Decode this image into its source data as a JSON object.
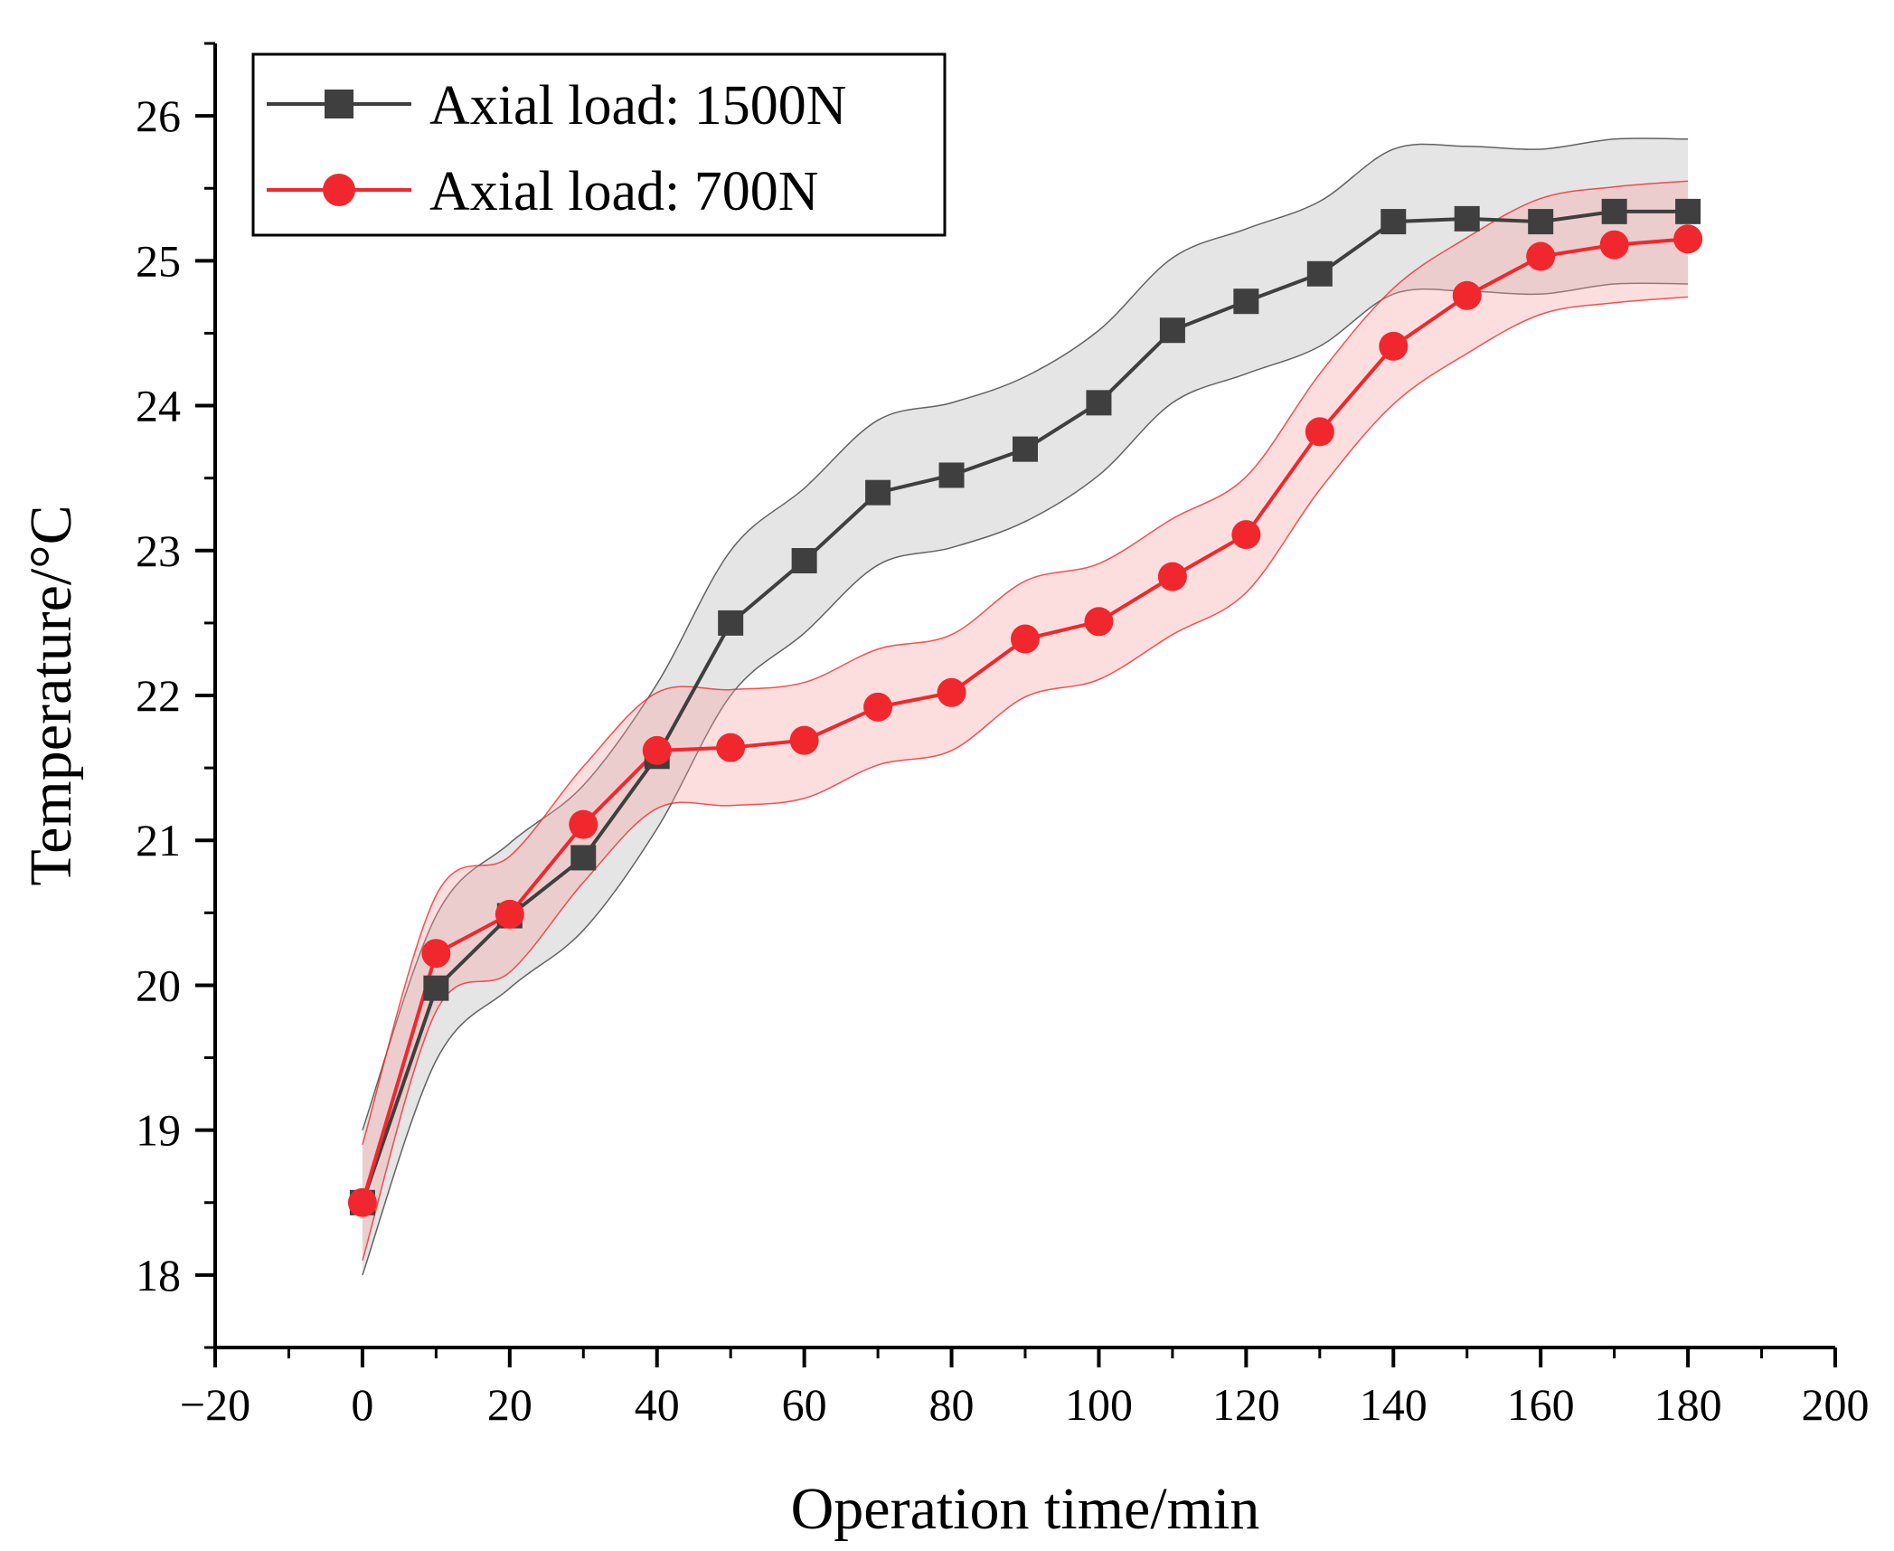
{
  "chart_data": {
    "type": "line",
    "title": "",
    "xlabel": "Operation time/min",
    "ylabel": "Temperature/°C",
    "xlim": [
      -20,
      200
    ],
    "ylim": [
      17.5,
      26.5
    ],
    "x_major_ticks": [
      -20,
      0,
      20,
      40,
      60,
      80,
      100,
      120,
      140,
      160,
      180,
      200
    ],
    "x_tick_labels": [
      "−20",
      "0",
      "20",
      "40",
      "60",
      "80",
      "100",
      "120",
      "140",
      "160",
      "180",
      "200"
    ],
    "y_major_ticks": [
      18,
      19,
      20,
      21,
      22,
      23,
      24,
      25,
      26
    ],
    "y_tick_labels": [
      "18",
      "19",
      "20",
      "21",
      "22",
      "23",
      "24",
      "25",
      "26"
    ],
    "legend_position": "top-left",
    "series": [
      {
        "name": "Axial load: 1500N",
        "marker": "square",
        "color": "#3f3f3f",
        "band_fill": "#b4b4b4",
        "band_stroke": "#3f3f3f",
        "x": [
          0,
          10,
          20,
          30,
          40,
          50,
          60,
          70,
          80,
          90,
          100,
          110,
          120,
          130,
          140,
          150,
          160,
          170,
          180
        ],
        "values": [
          18.5,
          19.98,
          20.48,
          20.88,
          21.58,
          22.5,
          22.93,
          23.4,
          23.52,
          23.7,
          24.02,
          24.52,
          24.72,
          24.91,
          25.27,
          25.29,
          25.27,
          25.34,
          25.34
        ],
        "band_halfwidth": 0.5
      },
      {
        "name": "Axial load: 700N",
        "marker": "circle",
        "color": "#f0282d",
        "band_fill": "#f8a0a0",
        "band_stroke": "#f0282d",
        "x": [
          0,
          10,
          20,
          30,
          40,
          50,
          60,
          70,
          80,
          90,
          100,
          110,
          120,
          130,
          140,
          150,
          160,
          170,
          180
        ],
        "values": [
          18.5,
          20.22,
          20.49,
          21.11,
          21.62,
          21.64,
          21.69,
          21.92,
          22.02,
          22.39,
          22.51,
          22.82,
          23.11,
          23.82,
          24.41,
          24.76,
          25.03,
          25.11,
          25.15
        ],
        "band_halfwidth": 0.4
      }
    ]
  }
}
